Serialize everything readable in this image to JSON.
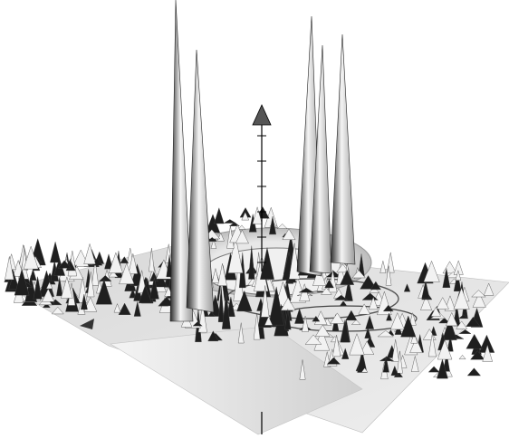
{
  "chart_data": {
    "type": "surface3d",
    "title": "",
    "xlabel": "",
    "ylabel": "",
    "zlabel": "",
    "grid": false,
    "legend": "none",
    "colors": {
      "background": "#ffffff",
      "plane_light": "#e6e6e6",
      "plane_mid": "#cfcfcf",
      "shadow": "#2b2b2b",
      "axis": "#000000"
    },
    "z_axis_ticks": 6,
    "peaks": [
      {
        "name": "peak-left-tall",
        "relative_height": 1.0
      },
      {
        "name": "peak-left-short",
        "relative_height": 0.72
      },
      {
        "name": "peak-center-a",
        "relative_height": 0.85
      },
      {
        "name": "peak-center-b",
        "relative_height": 0.9
      },
      {
        "name": "peak-right",
        "relative_height": 0.78
      }
    ]
  }
}
